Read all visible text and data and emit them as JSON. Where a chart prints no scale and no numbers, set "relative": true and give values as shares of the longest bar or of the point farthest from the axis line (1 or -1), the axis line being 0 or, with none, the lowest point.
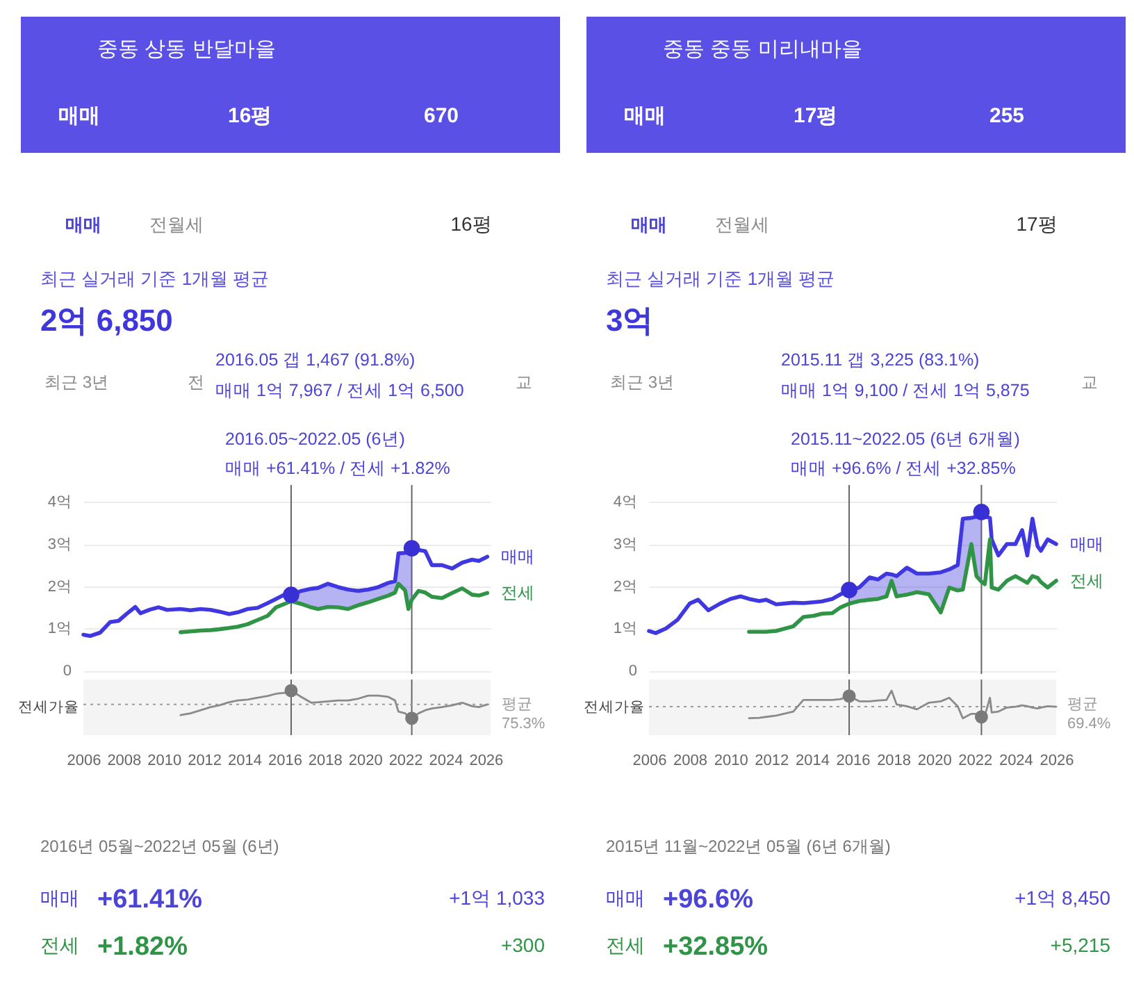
{
  "chart_data": [
    {
      "type": "line",
      "title": "중동 상동 반달마을",
      "annotations": [
        "매매",
        "16평",
        "670",
        "매매",
        "전월세",
        "16평",
        "최근 실거래 기준 1개월 평균",
        "2억 6,850",
        "최근 3년",
        "전",
        "교",
        "2016.05 갭 1,467 (91.8%)",
        "매매 1억 7,967 / 전세 1억 6,500",
        "2016.05~2022.05 (6년)",
        "매매 +61.41% / 전세 +1.82%"
      ],
      "x": [
        "2006-01",
        "2006-05",
        "2006-11",
        "2007-05",
        "2007-10",
        "2008-03",
        "2008-08",
        "2008-11",
        "2009-05",
        "2009-10",
        "2010-03",
        "2010-11",
        "2011-05",
        "2011-11",
        "2012-05",
        "2012-10",
        "2013-04",
        "2013-09",
        "2014-03",
        "2014-09",
        "2015-03",
        "2015-08",
        "2016-01",
        "2016-05",
        "2016-11",
        "2017-05",
        "2017-09",
        "2018-03",
        "2018-09",
        "2019-03",
        "2019-09",
        "2020-03",
        "2020-09",
        "2021-03",
        "2021-07",
        "2021-09",
        "2022-01",
        "2022-03",
        "2022-05",
        "2022-09",
        "2023-01",
        "2023-05",
        "2023-11",
        "2024-05",
        "2024-11",
        "2025-05",
        "2025-09",
        "2026-02"
      ],
      "xlim": [
        "2006-01",
        "2026-04"
      ],
      "ylim": [
        -0.08,
        4.4
      ],
      "yticks": [
        0,
        {
          "value": 1,
          "label": "1억"
        },
        {
          "value": 2,
          "label": "2억"
        },
        {
          "value": 3,
          "label": "3억"
        },
        {
          "value": 4,
          "label": "4억"
        }
      ],
      "grid": "y",
      "tick_labels": "y",
      "ref_lines": [
        {
          "axis": "x",
          "value": "2016-05",
          "color": "#666666",
          "line_style": "solid"
        },
        {
          "axis": "x",
          "value": "2022-05",
          "color": "#666666",
          "line_style": "solid"
        }
      ],
      "series": [
        {
          "name": "매매",
          "color": "#3f37e0",
          "values": [
            0.85,
            0.82,
            0.9,
            1.15,
            1.18,
            1.35,
            1.51,
            1.36,
            1.45,
            1.5,
            1.44,
            1.46,
            1.43,
            1.46,
            1.44,
            1.4,
            1.34,
            1.38,
            1.46,
            1.49,
            1.6,
            1.7,
            1.8,
            1.7967,
            1.89,
            1.94,
            1.96,
            2.06,
            1.98,
            1.92,
            1.89,
            1.92,
            1.98,
            2.08,
            2.12,
            2.78,
            2.79,
            2.82,
            2.9,
            2.86,
            2.83,
            2.5,
            2.5,
            2.42,
            2.56,
            2.63,
            2.6,
            2.7
          ],
          "lower": [
            null,
            null,
            null,
            null,
            null,
            null,
            null,
            null,
            null,
            null,
            null,
            null,
            null,
            null,
            null,
            null,
            null,
            null,
            null,
            null,
            null,
            null,
            null,
            1.65,
            1.58,
            1.5,
            1.46,
            1.51,
            1.5,
            1.46,
            1.55,
            1.62,
            1.7,
            1.78,
            1.85,
            2.06,
            1.9,
            1.46,
            1.68,
            null,
            null,
            null,
            null,
            null,
            null,
            null,
            null,
            null
          ],
          "upper": [
            null,
            null,
            null,
            null,
            null,
            null,
            null,
            null,
            null,
            null,
            null,
            null,
            null,
            null,
            null,
            null,
            null,
            null,
            null,
            null,
            null,
            null,
            null,
            1.7967,
            1.89,
            1.94,
            1.96,
            2.06,
            1.98,
            1.92,
            1.89,
            1.92,
            1.98,
            2.08,
            2.12,
            2.78,
            2.79,
            2.82,
            2.9,
            null,
            null,
            null,
            null,
            null,
            null,
            null,
            null,
            null
          ]
        },
        {
          "name": "전세",
          "color": "#2f9446",
          "values": [
            null,
            null,
            null,
            null,
            null,
            null,
            null,
            null,
            null,
            null,
            null,
            0.91,
            0.93,
            0.95,
            0.96,
            0.98,
            1.01,
            1.04,
            1.1,
            1.2,
            1.3,
            1.5,
            1.58,
            1.65,
            1.58,
            1.5,
            1.46,
            1.51,
            1.5,
            1.46,
            1.55,
            1.62,
            1.7,
            1.78,
            1.85,
            2.06,
            1.9,
            1.46,
            1.68,
            1.89,
            1.85,
            1.75,
            1.72,
            1.84,
            1.95,
            1.8,
            1.78,
            1.84
          ]
        },
        {
          "type": "scatter",
          "marker": "circle",
          "color": "#3830d4",
          "x": [
            "2016-05",
            "2022-05"
          ],
          "values": [
            1.7967,
            2.9
          ]
        }
      ]
    },
    {
      "type": "line",
      "relative": true,
      "ylabel": "전세가율",
      "annotations": [
        "평균 75.3%",
        "2016년 05월~2022년 05월 (6년)",
        "매매",
        "+61.41%",
        "+1억 1,033",
        "전세",
        "+1.82%",
        "+300"
      ],
      "x": [
        "2010-11",
        "2011-05",
        "2011-11",
        "2012-05",
        "2012-10",
        "2013-04",
        "2013-09",
        "2014-03",
        "2014-09",
        "2015-03",
        "2015-08",
        "2016-01",
        "2016-05",
        "2016-11",
        "2017-05",
        "2017-09",
        "2018-03",
        "2018-09",
        "2019-03",
        "2019-09",
        "2020-03",
        "2020-09",
        "2021-03",
        "2021-07",
        "2021-09",
        "2022-01",
        "2022-03",
        "2022-05",
        "2022-09",
        "2023-01",
        "2023-05",
        "2023-11",
        "2024-05",
        "2024-11",
        "2025-05",
        "2025-09",
        "2026-02"
      ],
      "xlim": [
        "2006-01",
        "2026-04"
      ],
      "xticks": [
        "2006",
        "2008",
        "2010",
        "2012",
        "2014",
        "2016",
        "2018",
        "2020",
        "2022",
        "2024",
        "2026"
      ],
      "tick_labels": "x",
      "bands": [
        {
          "axis": "x",
          "from": "2006-01",
          "to": "2026-04",
          "color": "#f4f4f4"
        }
      ],
      "ref_lines": [
        {
          "axis": "x",
          "value": "2016-05",
          "color": "#666666",
          "line_style": "solid"
        },
        {
          "axis": "x",
          "value": "2022-05",
          "color": "#666666",
          "line_style": "solid"
        },
        {
          "axis": "y",
          "value": 0.69,
          "color": "#9a9a9a",
          "line_style": "dotted"
        }
      ],
      "series": [
        {
          "color": "#8a8a8a",
          "values": [
            0.45,
            0.49,
            0.56,
            0.63,
            0.67,
            0.74,
            0.78,
            0.8,
            0.84,
            0.88,
            0.93,
            0.95,
            1.0,
            0.86,
            0.73,
            0.74,
            0.76,
            0.78,
            0.78,
            0.82,
            0.89,
            0.89,
            0.86,
            0.78,
            0.53,
            0.49,
            0.41,
            0.38,
            0.49,
            0.56,
            0.6,
            0.63,
            0.67,
            0.73,
            0.65,
            0.63,
            0.69
          ]
        },
        {
          "type": "scatter",
          "marker": "circle",
          "color": "#7a7a7a",
          "x": [
            "2016-05",
            "2022-05"
          ],
          "values": [
            1.0,
            0.38
          ]
        }
      ]
    },
    {
      "type": "line",
      "title": "중동 중동 미리내마을",
      "annotations": [
        "매매",
        "17평",
        "255",
        "매매",
        "전월세",
        "17평",
        "최근 실거래 기준 1개월 평균",
        "3억",
        "최근 3년",
        "교",
        "2015.11 갭 3,225 (83.1%)",
        "매매 1억 9,100 / 전세 1억 5,875",
        "2015.11~2022.05 (6년 6개월)",
        "매매 +96.6% / 전세 +32.85%"
      ],
      "x": [
        "2006-01",
        "2006-05",
        "2006-11",
        "2007-06",
        "2008-01",
        "2008-06",
        "2008-12",
        "2009-07",
        "2010-01",
        "2010-07",
        "2010-12",
        "2011-06",
        "2011-10",
        "2012-04",
        "2013-02",
        "2013-08",
        "2014-02",
        "2014-07",
        "2015-01",
        "2015-06",
        "2015-11",
        "2016-05",
        "2016-11",
        "2017-04",
        "2017-09",
        "2017-12",
        "2018-03",
        "2018-09",
        "2019-03",
        "2019-10",
        "2020-05",
        "2020-10",
        "2021-03",
        "2021-06",
        "2021-11",
        "2022-02",
        "2022-05",
        "2022-07",
        "2022-10",
        "2022-11",
        "2023-03",
        "2023-08",
        "2024-01",
        "2024-05",
        "2024-08",
        "2024-11",
        "2025-02",
        "2025-04",
        "2025-08",
        "2026-01"
      ],
      "xlim": [
        "2006-01",
        "2026-01"
      ],
      "ylim": [
        -0.08,
        4.4
      ],
      "yticks": [
        0,
        {
          "value": 1,
          "label": "1억"
        },
        {
          "value": 2,
          "label": "2억"
        },
        {
          "value": 3,
          "label": "3억"
        },
        {
          "value": 4,
          "label": "4억"
        }
      ],
      "grid": "y",
      "tick_labels": "y",
      "ref_lines": [
        {
          "axis": "x",
          "value": "2015-11",
          "color": "#666666",
          "line_style": "solid"
        },
        {
          "axis": "x",
          "value": "2022-05",
          "color": "#666666",
          "line_style": "solid"
        }
      ],
      "series": [
        {
          "name": "매매",
          "color": "#3f37e0",
          "values": [
            0.94,
            0.89,
            1.0,
            1.21,
            1.59,
            1.68,
            1.43,
            1.59,
            1.7,
            1.76,
            1.7,
            1.65,
            1.68,
            1.57,
            1.61,
            1.6,
            1.62,
            1.64,
            1.7,
            1.81,
            1.91,
            1.97,
            2.21,
            2.16,
            2.3,
            2.28,
            2.24,
            2.44,
            2.3,
            2.3,
            2.33,
            2.4,
            2.5,
            3.6,
            3.62,
            3.65,
            3.76,
            3.65,
            3.62,
            3.11,
            2.73,
            3.0,
            3.0,
            3.33,
            2.73,
            3.6,
            2.95,
            2.84,
            3.11,
            3.0
          ],
          "lower": [
            null,
            null,
            null,
            null,
            null,
            null,
            null,
            null,
            null,
            null,
            null,
            null,
            null,
            null,
            null,
            null,
            null,
            null,
            null,
            null,
            1.5875,
            1.65,
            1.68,
            1.7,
            1.76,
            2.13,
            1.76,
            1.8,
            1.86,
            1.81,
            1.38,
            1.97,
            1.9,
            1.92,
            3.0,
            2.24,
            2.11,
            null,
            null,
            null,
            null,
            null,
            null,
            null,
            null,
            null,
            null,
            null,
            null,
            null
          ],
          "upper": [
            null,
            null,
            null,
            null,
            null,
            null,
            null,
            null,
            null,
            null,
            null,
            null,
            null,
            null,
            null,
            null,
            null,
            null,
            null,
            null,
            1.91,
            1.97,
            2.21,
            2.16,
            2.3,
            2.28,
            2.24,
            2.44,
            2.3,
            2.3,
            2.33,
            2.4,
            2.5,
            3.6,
            3.62,
            3.65,
            3.76,
            null,
            null,
            null,
            null,
            null,
            null,
            null,
            null,
            null,
            null,
            null,
            null,
            null
          ]
        },
        {
          "name": "전세",
          "color": "#2f9446",
          "values": [
            null,
            null,
            null,
            null,
            null,
            null,
            null,
            null,
            null,
            null,
            0.92,
            0.92,
            0.92,
            0.94,
            1.05,
            1.27,
            1.3,
            1.35,
            1.36,
            1.5,
            1.5875,
            1.65,
            1.68,
            1.7,
            1.76,
            2.13,
            1.76,
            1.8,
            1.86,
            1.81,
            1.38,
            1.97,
            1.9,
            1.92,
            3.0,
            2.24,
            2.11,
            2.05,
            3.11,
            1.97,
            1.92,
            2.13,
            2.24,
            2.15,
            2.08,
            2.24,
            2.2,
            2.1,
            1.97,
            2.13
          ]
        },
        {
          "type": "scatter",
          "marker": "circle",
          "color": "#3830d4",
          "x": [
            "2015-11",
            "2022-05"
          ],
          "values": [
            1.91,
            3.76
          ]
        }
      ]
    },
    {
      "type": "line",
      "relative": true,
      "ylabel": "전세가율",
      "annotations": [
        "평균 69.4%",
        "2015년 11월~2022년 05월 (6년 6개월)",
        "매매",
        "+96.6%",
        "+1억 8,450",
        "전세",
        "+32.85%",
        "+5,215"
      ],
      "x": [
        "2010-12",
        "2011-06",
        "2011-10",
        "2012-04",
        "2013-02",
        "2013-08",
        "2014-02",
        "2014-07",
        "2015-01",
        "2015-06",
        "2015-11",
        "2016-05",
        "2016-11",
        "2017-04",
        "2017-09",
        "2017-12",
        "2018-03",
        "2018-09",
        "2019-03",
        "2019-10",
        "2020-05",
        "2020-10",
        "2021-03",
        "2021-06",
        "2021-11",
        "2022-02",
        "2022-05",
        "2022-07",
        "2022-10",
        "2022-11",
        "2023-03",
        "2023-08",
        "2024-01",
        "2024-05",
        "2024-08",
        "2024-11",
        "2025-02",
        "2025-04",
        "2025-08",
        "2026-01"
      ],
      "xlim": [
        "2006-01",
        "2026-01"
      ],
      "xticks": [
        "2006",
        "2008",
        "2010",
        "2012",
        "2014",
        "2016",
        "2018",
        "2020",
        "2022",
        "2024",
        "2026"
      ],
      "tick_labels": "x",
      "bands": [
        {
          "axis": "x",
          "from": "2006-01",
          "to": "2026-01",
          "color": "#f4f4f4"
        }
      ],
      "ref_lines": [
        {
          "axis": "x",
          "value": "2015-11",
          "color": "#666666",
          "line_style": "solid"
        },
        {
          "axis": "x",
          "value": "2022-05",
          "color": "#666666",
          "line_style": "solid"
        },
        {
          "axis": "y",
          "value": 0.64,
          "color": "#9a9a9a",
          "line_style": "dotted"
        }
      ],
      "series": [
        {
          "color": "#8a8a8a",
          "values": [
            0.38,
            0.39,
            0.41,
            0.44,
            0.53,
            0.79,
            0.79,
            0.79,
            0.79,
            0.81,
            0.88,
            0.76,
            0.76,
            0.78,
            0.79,
            1.0,
            0.69,
            0.65,
            0.58,
            0.73,
            0.76,
            0.84,
            0.65,
            0.38,
            0.48,
            0.48,
            0.41,
            0.44,
            0.84,
            0.51,
            0.53,
            0.62,
            0.64,
            0.67,
            0.65,
            0.62,
            0.6,
            0.62,
            0.65,
            0.64
          ]
        },
        {
          "type": "scatter",
          "marker": "circle",
          "color": "#7a7a7a",
          "x": [
            "2015-11",
            "2022-05"
          ],
          "values": [
            0.88,
            0.41
          ]
        }
      ]
    }
  ]
}
